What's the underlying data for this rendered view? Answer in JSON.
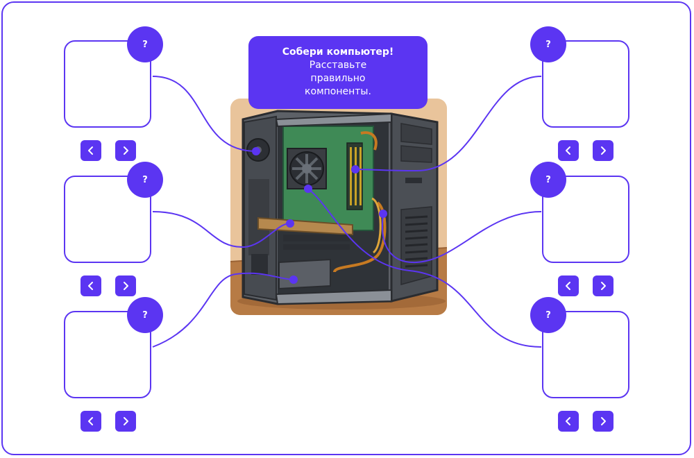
{
  "title": {
    "heading": "Собери компьютер!",
    "line1": "Расставьте",
    "line2": "правильно",
    "line3": "компоненты."
  },
  "slots": [
    {
      "id": "left-1",
      "badge": "?"
    },
    {
      "id": "left-2",
      "badge": "?"
    },
    {
      "id": "left-3",
      "badge": "?"
    },
    {
      "id": "right-1",
      "badge": "?"
    },
    {
      "id": "right-2",
      "badge": "?"
    },
    {
      "id": "right-3",
      "badge": "?"
    }
  ],
  "colors": {
    "accent": "#5b35f2",
    "background": "#e9c49b",
    "case": "#55595e"
  },
  "icons": {
    "prev": "chevron-left-icon",
    "next": "chevron-right-icon"
  }
}
